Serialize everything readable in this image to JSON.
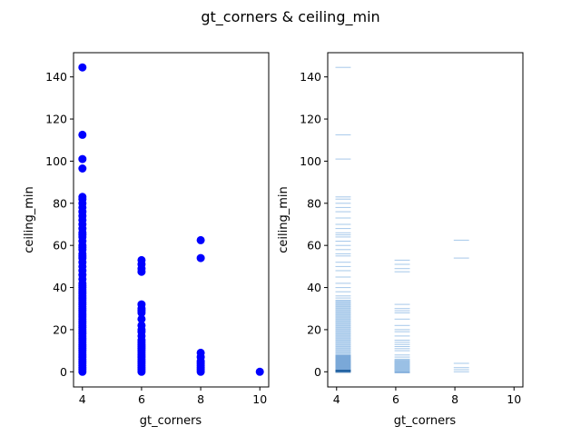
{
  "figure": {
    "title": "gt_corners & ceiling_min"
  },
  "chart_data": [
    {
      "type": "scatter",
      "xlabel": "gt_corners",
      "ylabel": "ceiling_min",
      "xlim": [
        3.7,
        10.3
      ],
      "ylim": [
        -7.2,
        151.5
      ],
      "xticks": [
        4,
        6,
        8,
        10
      ],
      "yticks": [
        0,
        20,
        40,
        60,
        80,
        100,
        120,
        140
      ],
      "grid": false,
      "marker_color": "#0000ff",
      "points": {
        "x4": [
          0,
          1,
          2,
          3,
          4,
          5,
          6,
          7,
          8,
          9,
          10,
          11,
          12,
          13,
          14,
          15,
          16,
          17,
          18,
          19,
          20,
          21,
          22,
          23,
          24,
          25,
          26,
          27,
          28,
          29,
          30,
          31,
          32,
          33,
          34,
          35,
          36,
          37,
          38,
          39,
          40,
          41,
          42,
          44,
          46,
          48,
          50,
          52,
          54,
          55,
          56,
          58,
          59,
          60,
          62,
          64,
          65,
          66,
          68,
          70,
          72,
          74,
          76,
          78,
          80,
          82,
          83,
          96.5,
          101,
          112.5,
          144.5
        ],
        "x6": [
          0,
          1,
          2,
          3,
          4,
          5,
          6,
          7,
          8,
          9,
          10,
          11,
          12,
          13,
          14,
          15,
          17,
          19,
          20,
          22,
          25,
          28,
          29,
          30,
          32,
          47.5,
          49,
          51,
          53
        ],
        "x8": [
          0,
          1,
          2,
          3,
          4,
          5,
          7,
          9,
          54,
          62.5
        ],
        "x10": [
          0
        ]
      }
    },
    {
      "type": "heatmap",
      "xlabel": "gt_corners",
      "ylabel": "ceiling_min",
      "xlim": [
        3.7,
        10.3
      ],
      "ylim": [
        -7.2,
        151.5
      ],
      "xticks": [
        4,
        6,
        8,
        10
      ],
      "yticks": [
        0,
        20,
        40,
        60,
        80,
        100,
        120,
        140
      ],
      "grid": false,
      "colors": {
        "light": "#a6c8ea",
        "mid": "#7aa8d8",
        "dark": "#1f5f9f"
      },
      "bins": {
        "x4": [
          0,
          0.5,
          1,
          2,
          3,
          4,
          5,
          6,
          7,
          8,
          9,
          10,
          11,
          12,
          13,
          14,
          15,
          16,
          17,
          18,
          19,
          20,
          21,
          22,
          23,
          24,
          25,
          26,
          27,
          28,
          29,
          30,
          31,
          32,
          33,
          34,
          35,
          36,
          38,
          40,
          42,
          45,
          48,
          50,
          52,
          55,
          56,
          58,
          60,
          62,
          64,
          65,
          66,
          68,
          70,
          73,
          76,
          78,
          80,
          82,
          83,
          101,
          112.5,
          144.5
        ],
        "x6": [
          0,
          1,
          2,
          3,
          4,
          5,
          6,
          7,
          8,
          10,
          11,
          12,
          13,
          14,
          15,
          17,
          19,
          20,
          22,
          25,
          28,
          29,
          30,
          32,
          47.5,
          49,
          51,
          53
        ],
        "x8": [
          0,
          1,
          2,
          4,
          54,
          62.5
        ]
      }
    }
  ]
}
